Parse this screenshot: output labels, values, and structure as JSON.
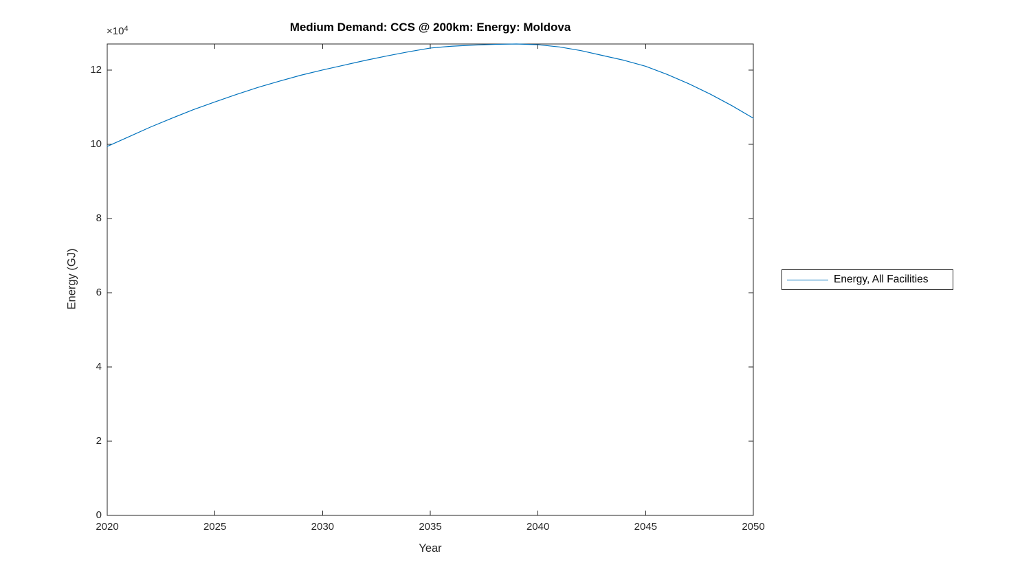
{
  "figure": {
    "background": "#ffffff"
  },
  "chart_data": {
    "type": "line",
    "title": "Medium Demand: CCS @ 200km: Energy: Moldova",
    "xlabel": "Year",
    "ylabel": "Energy (GJ)",
    "y_multiplier_base": "×10",
    "y_multiplier_exponent": "4",
    "y_unit_note": "y values are in units of 10^4 GJ (axis multiplier ×10^4)",
    "xlim": [
      2020,
      2050
    ],
    "ylim_e4": [
      0,
      12.7
    ],
    "x_ticks": [
      "2020",
      "2025",
      "2030",
      "2035",
      "2040",
      "2045",
      "2050"
    ],
    "y_ticks_e4": [
      "0",
      "2",
      "4",
      "6",
      "8",
      "10",
      "12"
    ],
    "grid": false,
    "legend_position": "right-outside",
    "colors": {
      "line": "#0072BD",
      "axis": "#262626",
      "title_text": "#000000",
      "tick_text": "#262626"
    },
    "series": [
      {
        "name": "Energy, All Facilities",
        "color": "#0072BD",
        "x": [
          2020,
          2021,
          2022,
          2023,
          2024,
          2025,
          2026,
          2027,
          2028,
          2029,
          2030,
          2031,
          2032,
          2033,
          2034,
          2035,
          2036,
          2037,
          2038,
          2039,
          2040,
          2041,
          2042,
          2043,
          2044,
          2045,
          2046,
          2047,
          2048,
          2049,
          2050
        ],
        "y_e4": [
          9.94,
          10.2,
          10.46,
          10.7,
          10.93,
          11.14,
          11.34,
          11.53,
          11.7,
          11.86,
          12.0,
          12.13,
          12.26,
          12.38,
          12.49,
          12.59,
          12.64,
          12.67,
          12.69,
          12.7,
          12.68,
          12.62,
          12.52,
          12.39,
          12.26,
          12.1,
          11.88,
          11.63,
          11.35,
          11.04,
          10.7
        ]
      }
    ]
  }
}
